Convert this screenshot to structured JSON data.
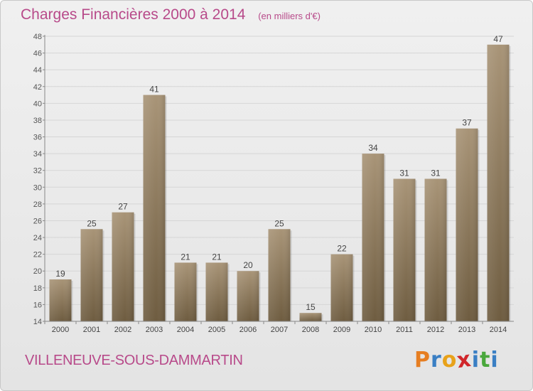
{
  "header": {
    "title": "Charges Financières 2000 à 2014",
    "unit": "(en milliers d'€)"
  },
  "footer": {
    "commune": "VILLENEUVE-SOUS-DAMMARTIN",
    "logo_letters": [
      "P",
      "r",
      "o",
      "x",
      "i",
      "t",
      "i"
    ],
    "logo_colors": [
      "#e67e22",
      "#3a7fc4",
      "#e8a21a",
      "#d0262b",
      "#3a7fc4",
      "#4aa83c",
      "#3a7fc4"
    ]
  },
  "chart_data": {
    "type": "bar",
    "title": "Charges Financières 2000 à 2014",
    "subtitle": "(en milliers d'€)",
    "categories": [
      "2000",
      "2001",
      "2002",
      "2003",
      "2004",
      "2005",
      "2006",
      "2007",
      "2008",
      "2009",
      "2010",
      "2011",
      "2012",
      "2013",
      "2014"
    ],
    "values": [
      19,
      25,
      27,
      41,
      21,
      21,
      20,
      25,
      15,
      22,
      34,
      31,
      31,
      37,
      47
    ],
    "ylim": [
      14,
      48
    ],
    "yticks": [
      14,
      16,
      18,
      20,
      22,
      24,
      26,
      28,
      30,
      32,
      34,
      36,
      38,
      40,
      42,
      44,
      46,
      48
    ],
    "grid": true,
    "bar_color": "#8c7a5c"
  }
}
